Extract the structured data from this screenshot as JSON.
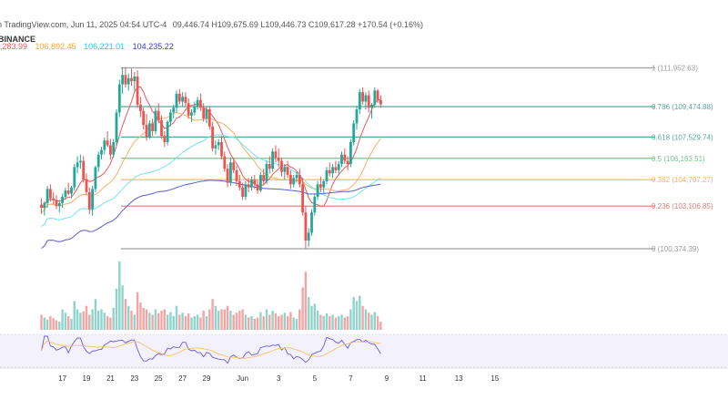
{
  "header": {
    "source": "n TradingView.com, Jun 11, 2025 04:54 UTC-4",
    "ohlc": "09,446.74  H109,675.69  L109,446.73  C109,617.28  +170.54 (+0.16%)",
    "exchange": "BINANCE",
    "ma1": ",283.99",
    "ma2": "106,892.45",
    "ma3": "106,221.01",
    "ma4": "104,235.22"
  },
  "colors": {
    "up": "#26a69a",
    "down": "#ef5350",
    "ma_red": "#e35c5c",
    "ma_orange": "#f5b066",
    "ma_cyan": "#74e4f0",
    "ma_indigo": "#5c5ccc",
    "fib_gray": "#9e9e9e",
    "fib_teal": "#5aa89c",
    "fib_green": "#7cc08f",
    "fib_orange": "#f5b55a",
    "fib_red": "#e07a7a"
  },
  "chart_data": {
    "type": "candlestick",
    "ylim": [
      98800,
      112800
    ],
    "fib_levels": [
      {
        "label": "1 (111,952.63)",
        "value": 111952.63,
        "color": "#9e9e9e"
      },
      {
        "label": "0.786 (109,474.88)",
        "value": 109474.88,
        "color": "#5aa89c"
      },
      {
        "label": "0.618 (107,529.74)",
        "value": 107529.74,
        "color": "#5aa89c"
      },
      {
        "label": "0.5 (106,163.51)",
        "value": 106163.51,
        "color": "#7cc08f"
      },
      {
        "label": "0.382 (104,797.27)",
        "value": 104797.27,
        "color": "#f5b55a"
      },
      {
        "label": "0.236 (103,106.85)",
        "value": 103106.85,
        "color": "#e07a7a"
      },
      {
        "label": "0 (100,374.39)",
        "value": 100374.39,
        "color": "#9e9e9e"
      }
    ],
    "x_ticks": [
      "17",
      "19",
      "21",
      "23",
      "25",
      "27",
      "29",
      "Jun",
      "3",
      "5",
      "7",
      "9",
      "11",
      "13",
      "15"
    ],
    "x_tick_index": [
      -3,
      5,
      13,
      21,
      29,
      37,
      45,
      57,
      69,
      81,
      93,
      105,
      117,
      129,
      141
    ],
    "start_index": -10,
    "candles": [
      [
        103200,
        103600,
        102600,
        103000
      ],
      [
        103000,
        103400,
        102500,
        103300
      ],
      [
        103300,
        104400,
        103000,
        104200
      ],
      [
        104200,
        104500,
        103400,
        103600
      ],
      [
        103600,
        104000,
        103200,
        103500
      ],
      [
        103500,
        103800,
        102900,
        103100
      ],
      [
        103100,
        103500,
        102700,
        103300
      ],
      [
        103300,
        103900,
        103000,
        103700
      ],
      [
        103700,
        104300,
        103500,
        104100
      ],
      [
        104100,
        104600,
        103800,
        103900
      ],
      [
        103900,
        104400,
        103600,
        104300
      ],
      [
        104300,
        105800,
        104100,
        105600
      ],
      [
        105600,
        106300,
        105200,
        105900
      ],
      [
        105900,
        106400,
        105500,
        106000
      ],
      [
        106000,
        106300,
        104600,
        104800
      ],
      [
        104800,
        105200,
        103800,
        104000
      ],
      [
        104000,
        104300,
        102600,
        102900
      ],
      [
        102900,
        104400,
        102500,
        104200
      ],
      [
        104200,
        105700,
        104000,
        105600
      ],
      [
        105600,
        106600,
        105300,
        106400
      ],
      [
        106400,
        106900,
        106100,
        106700
      ],
      [
        106700,
        107500,
        106400,
        107300
      ],
      [
        107300,
        107900,
        106900,
        107000
      ],
      [
        107000,
        107400,
        106100,
        106400
      ],
      [
        106400,
        107400,
        106200,
        107200
      ],
      [
        107200,
        109300,
        107000,
        109100
      ],
      [
        109100,
        111200,
        108800,
        110900
      ],
      [
        110900,
        112000,
        110300,
        111500
      ],
      [
        111500,
        112000,
        110700,
        110900
      ],
      [
        110900,
        111600,
        110500,
        111300
      ],
      [
        111300,
        111900,
        110800,
        111100
      ],
      [
        111100,
        111700,
        110500,
        111400
      ],
      [
        111400,
        111800,
        109400,
        109600
      ],
      [
        109600,
        110100,
        108800,
        109200
      ],
      [
        109200,
        109400,
        108000,
        108300
      ],
      [
        108300,
        109000,
        107300,
        107500
      ],
      [
        107500,
        108600,
        107400,
        108400
      ],
      [
        108400,
        108700,
        107600,
        107900
      ],
      [
        107900,
        109400,
        107700,
        109200
      ],
      [
        109200,
        109700,
        108400,
        108600
      ],
      [
        108600,
        108900,
        107400,
        107600
      ],
      [
        107600,
        107900,
        106900,
        107200
      ],
      [
        107200,
        108600,
        107000,
        108500
      ],
      [
        108500,
        109300,
        108200,
        109100
      ],
      [
        109100,
        109600,
        108700,
        109400
      ],
      [
        109400,
        110500,
        109100,
        110300
      ],
      [
        110300,
        110600,
        109600,
        109800
      ],
      [
        109800,
        110400,
        109500,
        110100
      ],
      [
        110100,
        110400,
        109500,
        109700
      ],
      [
        109700,
        110000,
        108700,
        108900
      ],
      [
        108900,
        109300,
        108500,
        109100
      ],
      [
        109100,
        109800,
        108900,
        109500
      ],
      [
        109500,
        110100,
        109300,
        109900
      ],
      [
        109900,
        110300,
        109200,
        109400
      ],
      [
        109400,
        109700,
        108500,
        108700
      ],
      [
        108700,
        109500,
        108400,
        109300
      ],
      [
        109300,
        109500,
        108000,
        108200
      ],
      [
        108200,
        108500,
        106600,
        106800
      ],
      [
        106800,
        107300,
        106400,
        107000
      ],
      [
        107000,
        107400,
        106700,
        107200
      ],
      [
        107200,
        107600,
        106100,
        106300
      ],
      [
        106300,
        106600,
        105300,
        105500
      ],
      [
        105500,
        105800,
        104300,
        104600
      ],
      [
        104600,
        106200,
        104400,
        105900
      ],
      [
        105900,
        106200,
        105200,
        105400
      ],
      [
        105400,
        105700,
        104400,
        104700
      ],
      [
        104700,
        105100,
        104100,
        104300
      ],
      [
        104300,
        104600,
        103500,
        103700
      ],
      [
        103700,
        104700,
        103500,
        104500
      ],
      [
        104500,
        104900,
        104000,
        104300
      ],
      [
        104300,
        105000,
        104100,
        104800
      ],
      [
        104800,
        105100,
        104200,
        104500
      ],
      [
        104500,
        104800,
        103900,
        104100
      ],
      [
        104100,
        105300,
        104000,
        105100
      ],
      [
        105100,
        105500,
        104500,
        104700
      ],
      [
        104700,
        106000,
        104500,
        105800
      ],
      [
        105800,
        106300,
        105200,
        105500
      ],
      [
        105500,
        106800,
        105300,
        106600
      ],
      [
        106600,
        107000,
        105900,
        106200
      ],
      [
        106200,
        106800,
        105600,
        106000
      ],
      [
        106000,
        106200,
        105000,
        105300
      ],
      [
        105300,
        105800,
        104800,
        105600
      ],
      [
        105600,
        106000,
        104900,
        105100
      ],
      [
        105100,
        105400,
        104200,
        104500
      ],
      [
        104500,
        105100,
        104300,
        104900
      ],
      [
        104900,
        105300,
        104600,
        105100
      ],
      [
        105100,
        105500,
        104300,
        104500
      ],
      [
        104500,
        104900,
        102500,
        102700
      ],
      [
        102700,
        103100,
        100400,
        100900
      ],
      [
        100900,
        101700,
        100500,
        101400
      ],
      [
        101400,
        102900,
        101200,
        102700
      ],
      [
        102700,
        103900,
        102500,
        103700
      ],
      [
        103700,
        104700,
        103500,
        104500
      ],
      [
        104500,
        105000,
        104000,
        104300
      ],
      [
        104300,
        104800,
        103900,
        104700
      ],
      [
        104700,
        105600,
        104500,
        105400
      ],
      [
        105400,
        105900,
        105000,
        105200
      ],
      [
        105200,
        105800,
        104900,
        105600
      ],
      [
        105600,
        106000,
        105200,
        105400
      ],
      [
        105400,
        106000,
        105100,
        105800
      ],
      [
        105800,
        106600,
        105600,
        106400
      ],
      [
        106400,
        106800,
        105800,
        106000
      ],
      [
        106000,
        106300,
        105400,
        105800
      ],
      [
        105800,
        107400,
        105600,
        107200
      ],
      [
        107200,
        108600,
        107000,
        108400
      ],
      [
        108400,
        109500,
        108000,
        109300
      ],
      [
        109300,
        110600,
        109000,
        110400
      ],
      [
        110400,
        110700,
        109600,
        109800
      ],
      [
        109800,
        110400,
        109300,
        110200
      ],
      [
        110200,
        110500,
        109100,
        109400
      ],
      [
        109400,
        109700,
        108700,
        109600
      ],
      [
        109600,
        110700,
        109400,
        110500
      ],
      [
        110500,
        110600,
        109700,
        109900
      ],
      [
        109900,
        110200,
        109400,
        109620
      ]
    ],
    "volume": [
      0.22,
      0.18,
      0.15,
      0.2,
      0.17,
      0.14,
      0.12,
      0.3,
      0.25,
      0.2,
      0.16,
      0.42,
      0.3,
      0.25,
      0.27,
      0.35,
      0.22,
      0.3,
      0.45,
      0.28,
      0.3,
      0.25,
      0.2,
      0.18,
      0.32,
      0.6,
      1.0,
      0.65,
      0.45,
      0.35,
      0.28,
      0.22,
      0.55,
      0.4,
      0.32,
      0.3,
      0.25,
      0.22,
      0.3,
      0.24,
      0.28,
      0.3,
      0.22,
      0.26,
      0.2,
      0.35,
      0.22,
      0.25,
      0.2,
      0.24,
      0.18,
      0.2,
      0.22,
      0.18,
      0.28,
      0.2,
      0.3,
      0.45,
      0.35,
      0.28,
      0.3,
      0.3,
      0.35,
      0.28,
      0.22,
      0.25,
      0.28,
      0.3,
      0.22,
      0.18,
      0.2,
      0.16,
      0.18,
      0.26,
      0.2,
      0.3,
      0.22,
      0.28,
      0.24,
      0.2,
      0.22,
      0.25,
      0.2,
      0.26,
      0.18,
      0.16,
      0.3,
      0.62,
      0.85,
      0.48,
      0.35,
      0.38,
      0.28,
      0.22,
      0.2,
      0.24,
      0.2,
      0.22,
      0.18,
      0.2,
      0.22,
      0.18,
      0.2,
      0.3,
      0.48,
      0.42,
      0.5,
      0.35,
      0.3,
      0.25,
      0.22,
      0.26,
      0.2,
      0.12
    ]
  }
}
